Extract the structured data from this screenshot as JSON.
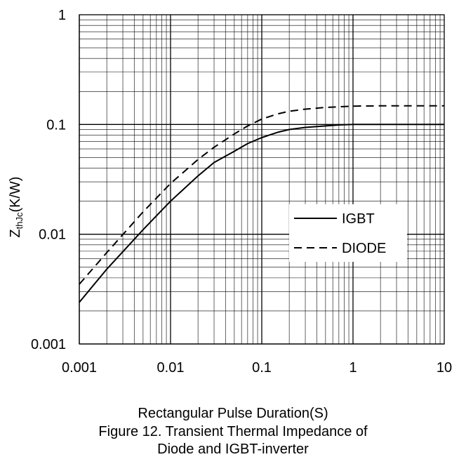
{
  "chart_data": {
    "type": "line",
    "title": "",
    "xlabel": "Rectangular Pulse Duration(S)",
    "ylabel": {
      "main": "Z",
      "sub": "thJc",
      "unit": "(K/W)"
    },
    "xscale": "log",
    "yscale": "log",
    "xlim": [
      0.001,
      10
    ],
    "ylim": [
      0.001,
      1
    ],
    "grid": true,
    "legend_position": "center-right",
    "x_ticks": [
      "0.001",
      "0.01",
      "0.1",
      "1",
      "10"
    ],
    "y_ticks": [
      "0.001",
      "0.01",
      "0.1",
      "1"
    ],
    "series": [
      {
        "name": "IGBT",
        "style": "solid",
        "color": "#000000",
        "x": [
          0.001,
          0.002,
          0.005,
          0.01,
          0.02,
          0.03,
          0.05,
          0.07,
          0.1,
          0.15,
          0.2,
          0.3,
          0.5,
          0.7,
          1,
          2,
          5,
          10
        ],
        "y": [
          0.0024,
          0.0048,
          0.011,
          0.02,
          0.034,
          0.045,
          0.057,
          0.067,
          0.076,
          0.085,
          0.09,
          0.094,
          0.097,
          0.099,
          0.1,
          0.1,
          0.1,
          0.1
        ]
      },
      {
        "name": "DIODE",
        "style": "dashed",
        "color": "#000000",
        "x": [
          0.001,
          0.002,
          0.005,
          0.01,
          0.02,
          0.03,
          0.05,
          0.07,
          0.1,
          0.15,
          0.2,
          0.3,
          0.5,
          1,
          2,
          5,
          10
        ],
        "y": [
          0.0035,
          0.0068,
          0.016,
          0.029,
          0.048,
          0.062,
          0.082,
          0.097,
          0.112,
          0.125,
          0.132,
          0.138,
          0.143,
          0.147,
          0.148,
          0.148,
          0.148
        ]
      }
    ]
  },
  "caption": {
    "line1": "Figure 12. Transient Thermal Impedance of",
    "line2": "Diode and IGBT-inverter"
  }
}
